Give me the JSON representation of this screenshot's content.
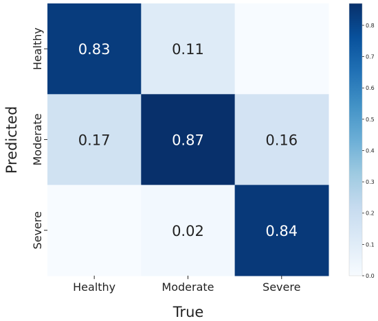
{
  "chart_data": {
    "type": "heatmap",
    "title": "",
    "xlabel": "True",
    "ylabel": "Predicted",
    "x_categories": [
      "Healthy",
      "Moderate",
      "Severe"
    ],
    "y_categories": [
      "Healthy",
      "Moderate",
      "Severe"
    ],
    "values": [
      [
        0.83,
        0.11,
        0.0
      ],
      [
        0.17,
        0.87,
        0.16
      ],
      [
        0.0,
        0.02,
        0.84
      ]
    ],
    "cell_text": [
      [
        "0.83",
        "0.11",
        ""
      ],
      [
        "0.17",
        "0.87",
        "0.16"
      ],
      [
        "",
        "0.02",
        "0.84"
      ]
    ],
    "colorbar": {
      "range": [
        0.0,
        0.87
      ],
      "ticks": [
        0.0,
        0.1,
        0.2,
        0.3,
        0.4,
        0.5,
        0.6,
        0.7,
        0.8
      ],
      "tick_labels": [
        "0.0",
        "0.1",
        "0.2",
        "0.3",
        "0.4",
        "0.5",
        "0.6",
        "0.7",
        "0.8"
      ],
      "colormap": "Blues",
      "color_low": "#f7fbff",
      "color_high": "#08306b"
    }
  }
}
